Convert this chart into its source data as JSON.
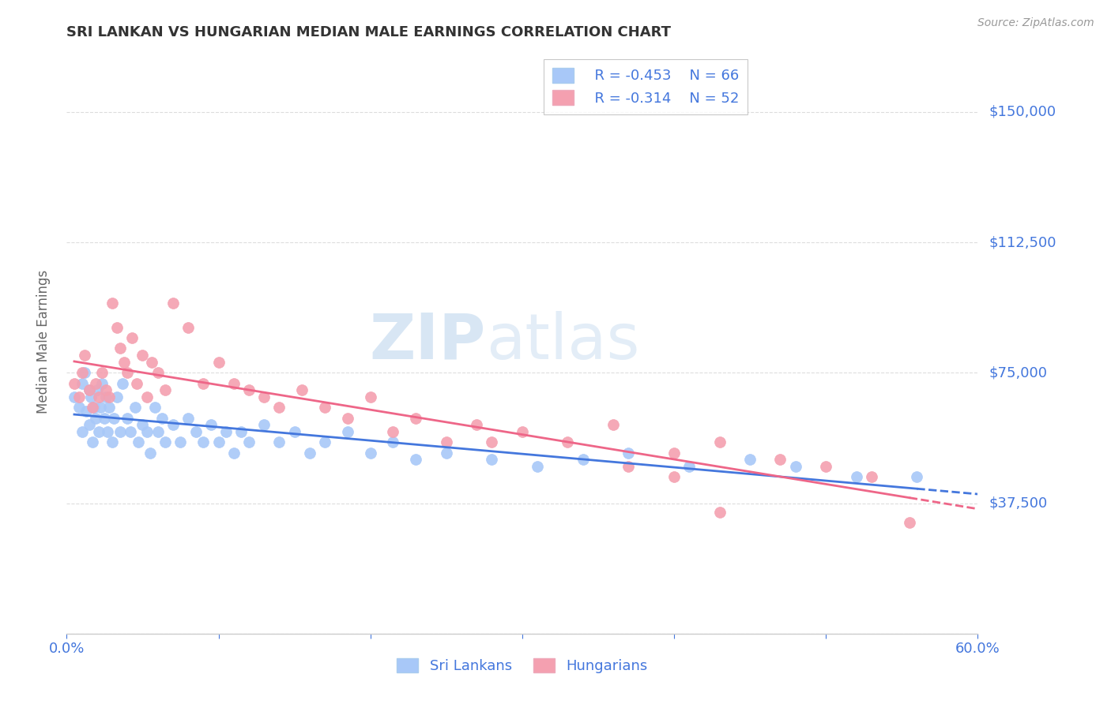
{
  "title": "SRI LANKAN VS HUNGARIAN MEDIAN MALE EARNINGS CORRELATION CHART",
  "source": "Source: ZipAtlas.com",
  "ylabel": "Median Male Earnings",
  "xlim": [
    0.0,
    0.6
  ],
  "ylim": [
    0,
    168000
  ],
  "yticks": [
    0,
    37500,
    75000,
    112500,
    150000
  ],
  "ytick_labels": [
    "",
    "$37,500",
    "$75,000",
    "$112,500",
    "$150,000"
  ],
  "xticks": [
    0.0,
    0.1,
    0.2,
    0.3,
    0.4,
    0.5,
    0.6
  ],
  "watermark_zip": "ZIP",
  "watermark_atlas": "atlas",
  "blue_color": "#A8C8F8",
  "pink_color": "#F4A0B0",
  "blue_line_color": "#4477DD",
  "pink_line_color": "#EE6688",
  "axis_color": "#4477DD",
  "legend_r1": "R = -0.453",
  "legend_n1": "N = 66",
  "legend_r2": "R = -0.314",
  "legend_n2": "N = 52",
  "legend_label1": "Sri Lankans",
  "legend_label2": "Hungarians",
  "grid_color": "#DDDDDD",
  "sri_lankan_x": [
    0.005,
    0.008,
    0.01,
    0.01,
    0.012,
    0.013,
    0.015,
    0.015,
    0.016,
    0.017,
    0.018,
    0.019,
    0.02,
    0.021,
    0.022,
    0.023,
    0.025,
    0.026,
    0.027,
    0.028,
    0.03,
    0.031,
    0.033,
    0.035,
    0.037,
    0.04,
    0.042,
    0.045,
    0.047,
    0.05,
    0.053,
    0.055,
    0.058,
    0.06,
    0.063,
    0.065,
    0.07,
    0.075,
    0.08,
    0.085,
    0.09,
    0.095,
    0.1,
    0.105,
    0.11,
    0.115,
    0.12,
    0.13,
    0.14,
    0.15,
    0.16,
    0.17,
    0.185,
    0.2,
    0.215,
    0.23,
    0.25,
    0.28,
    0.31,
    0.34,
    0.37,
    0.41,
    0.45,
    0.48,
    0.52,
    0.56
  ],
  "sri_lankan_y": [
    68000,
    65000,
    72000,
    58000,
    75000,
    64000,
    70000,
    60000,
    68000,
    55000,
    65000,
    62000,
    70000,
    58000,
    65000,
    72000,
    62000,
    68000,
    58000,
    65000,
    55000,
    62000,
    68000,
    58000,
    72000,
    62000,
    58000,
    65000,
    55000,
    60000,
    58000,
    52000,
    65000,
    58000,
    62000,
    55000,
    60000,
    55000,
    62000,
    58000,
    55000,
    60000,
    55000,
    58000,
    52000,
    58000,
    55000,
    60000,
    55000,
    58000,
    52000,
    55000,
    58000,
    52000,
    55000,
    50000,
    52000,
    50000,
    48000,
    50000,
    52000,
    48000,
    50000,
    48000,
    45000,
    45000
  ],
  "hungarian_x": [
    0.005,
    0.008,
    0.01,
    0.012,
    0.015,
    0.017,
    0.019,
    0.021,
    0.023,
    0.026,
    0.028,
    0.03,
    0.033,
    0.035,
    0.038,
    0.04,
    0.043,
    0.046,
    0.05,
    0.053,
    0.056,
    0.06,
    0.065,
    0.07,
    0.08,
    0.09,
    0.1,
    0.11,
    0.12,
    0.13,
    0.14,
    0.155,
    0.17,
    0.185,
    0.2,
    0.215,
    0.23,
    0.25,
    0.27,
    0.3,
    0.33,
    0.36,
    0.4,
    0.43,
    0.47,
    0.5,
    0.53,
    0.555,
    0.4,
    0.28,
    0.37,
    0.43
  ],
  "hungarian_y": [
    72000,
    68000,
    75000,
    80000,
    70000,
    65000,
    72000,
    68000,
    75000,
    70000,
    68000,
    95000,
    88000,
    82000,
    78000,
    75000,
    85000,
    72000,
    80000,
    68000,
    78000,
    75000,
    70000,
    95000,
    88000,
    72000,
    78000,
    72000,
    70000,
    68000,
    65000,
    70000,
    65000,
    62000,
    68000,
    58000,
    62000,
    55000,
    60000,
    58000,
    55000,
    60000,
    52000,
    55000,
    50000,
    48000,
    45000,
    32000,
    45000,
    55000,
    48000,
    35000
  ],
  "background_color": "#FFFFFF",
  "fig_bg_color": "#FFFFFF"
}
